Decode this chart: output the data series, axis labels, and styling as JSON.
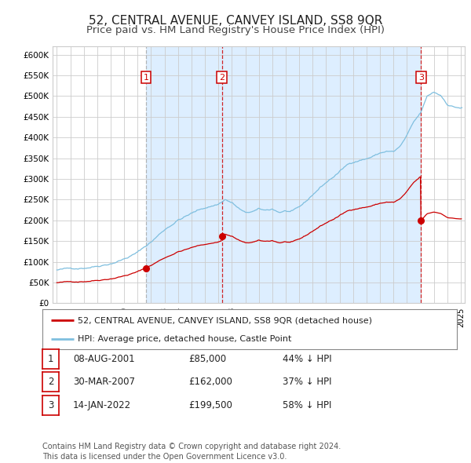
{
  "title": "52, CENTRAL AVENUE, CANVEY ISLAND, SS8 9QR",
  "subtitle": "Price paid vs. HM Land Registry's House Price Index (HPI)",
  "title_fontsize": 11,
  "subtitle_fontsize": 9.5,
  "ylim": [
    0,
    620000
  ],
  "yticks": [
    0,
    50000,
    100000,
    150000,
    200000,
    250000,
    300000,
    350000,
    400000,
    450000,
    500000,
    550000,
    600000
  ],
  "ytick_labels": [
    "£0",
    "£50K",
    "£100K",
    "£150K",
    "£200K",
    "£250K",
    "£300K",
    "£350K",
    "£400K",
    "£450K",
    "£500K",
    "£550K",
    "£600K"
  ],
  "hpi_color": "#7fbfdf",
  "price_color": "#cc0000",
  "shade_color": "#ddeeff",
  "transaction_dates": [
    2001.62,
    2007.25,
    2022.04
  ],
  "transaction_prices": [
    85000,
    162000,
    199500
  ],
  "transaction_labels": [
    "1",
    "2",
    "3"
  ],
  "vline_styles": [
    "--",
    "--",
    "--"
  ],
  "vline_colors": [
    "#aaaaaa",
    "#cc0000",
    "#cc0000"
  ],
  "legend_label_price": "52, CENTRAL AVENUE, CANVEY ISLAND, SS8 9QR (detached house)",
  "legend_label_hpi": "HPI: Average price, detached house, Castle Point",
  "table_rows": [
    [
      "1",
      "08-AUG-2001",
      "£85,000",
      "44% ↓ HPI"
    ],
    [
      "2",
      "30-MAR-2007",
      "£162,000",
      "37% ↓ HPI"
    ],
    [
      "3",
      "14-JAN-2022",
      "£199,500",
      "58% ↓ HPI"
    ]
  ],
  "footer": "Contains HM Land Registry data © Crown copyright and database right 2024.\nThis data is licensed under the Open Government Licence v3.0.",
  "background_color": "#ffffff",
  "grid_color": "#cccccc"
}
